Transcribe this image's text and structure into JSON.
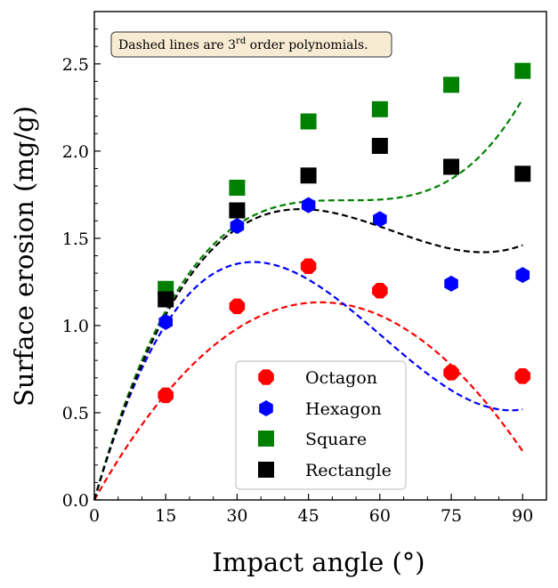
{
  "chart_data": {
    "type": "scatter",
    "title": "",
    "xlabel": "Impact angle (°)",
    "ylabel": "Surface erosion (mg/g)",
    "xlim": [
      0,
      95
    ],
    "ylim": [
      0,
      2.8
    ],
    "x_ticks": [
      0,
      15,
      30,
      45,
      60,
      75,
      90
    ],
    "x_tick_labels": [
      "0",
      "15",
      "30",
      "45",
      "60",
      "75",
      "90"
    ],
    "y_ticks": [
      0,
      0.5,
      1.0,
      1.5,
      2.0,
      2.5
    ],
    "y_tick_labels": [
      "0.0",
      "0.5",
      "1.0",
      "1.5",
      "2.0",
      "2.5"
    ],
    "grid": false,
    "legend_position": "lower-center",
    "annotation": {
      "text_main": "Dashed lines are 3",
      "text_sup": "rd",
      "text_end": " order polynomials."
    },
    "x": [
      15,
      30,
      45,
      60,
      75,
      90
    ],
    "series": [
      {
        "name": "Octagon",
        "marker": "octagon",
        "color": "#ff0000",
        "values": [
          0.6,
          1.11,
          1.34,
          1.2,
          0.73,
          0.71
        ],
        "fit_curve": {
          "x_range": [
            0,
            90
          ],
          "coeffs": [
            0,
            0.0484,
            -0.000532,
            3.2e-07
          ]
        }
      },
      {
        "name": "Hexagon",
        "marker": "hexagon",
        "color": "#0000ff",
        "values": [
          1.02,
          1.57,
          1.69,
          1.61,
          1.24,
          1.29
        ],
        "fit_curve": {
          "x_range": [
            0,
            90
          ],
          "coeffs": [
            0,
            0.0937,
            -0.00194,
            1.07e-05
          ]
        }
      },
      {
        "name": "Square",
        "marker": "square",
        "color": "#008000",
        "values": [
          1.21,
          1.79,
          2.17,
          2.24,
          2.38,
          2.46
        ],
        "fit_curve": {
          "x_range": [
            0,
            90
          ],
          "coeffs": [
            0,
            0.0971,
            -0.00183,
            1.15e-05
          ]
        }
      },
      {
        "name": "Rectangle",
        "marker": "square",
        "color": "#000000",
        "values": [
          1.15,
          1.66,
          1.86,
          2.03,
          1.91,
          1.87
        ],
        "fit_curve": {
          "x_range": [
            0,
            90
          ],
          "coeffs": [
            0,
            0.09345,
            -0.00165,
            8.8e-06
          ]
        }
      }
    ]
  }
}
